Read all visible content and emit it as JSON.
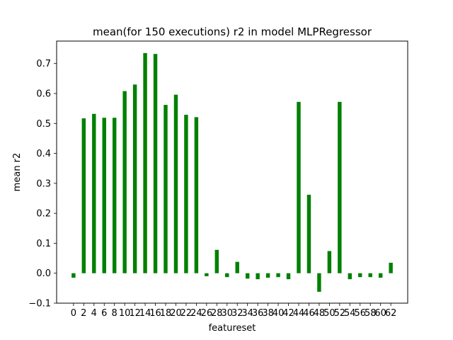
{
  "chart_data": {
    "type": "bar",
    "title": "mean(for 150 executions) r2 in model MLPRegressor",
    "xlabel": "featureset",
    "ylabel": "mean r2",
    "ylim": [
      -0.1,
      0.775
    ],
    "yticks": [
      "−0.1",
      "0.0",
      "0.1",
      "0.2",
      "0.3",
      "0.4",
      "0.5",
      "0.6",
      "0.7"
    ],
    "grid": false,
    "bar_color": "#008000",
    "categories": [
      "0",
      "2",
      "4",
      "6",
      "8",
      "10",
      "12",
      "14",
      "16",
      "18",
      "20",
      "22",
      "24",
      "26",
      "28",
      "30",
      "32",
      "34",
      "36",
      "38",
      "40",
      "42",
      "44",
      "46",
      "48",
      "50",
      "52",
      "54",
      "56",
      "58",
      "60",
      "62"
    ],
    "values": [
      -0.015,
      0.517,
      0.532,
      0.519,
      0.519,
      0.608,
      0.63,
      0.735,
      0.732,
      0.562,
      0.596,
      0.529,
      0.521,
      -0.01,
      0.078,
      -0.013,
      0.038,
      -0.018,
      -0.02,
      -0.015,
      -0.013,
      -0.02,
      0.572,
      0.262,
      -0.062,
      0.074,
      0.572,
      -0.02,
      -0.013,
      -0.013,
      -0.015,
      0.035
    ]
  }
}
